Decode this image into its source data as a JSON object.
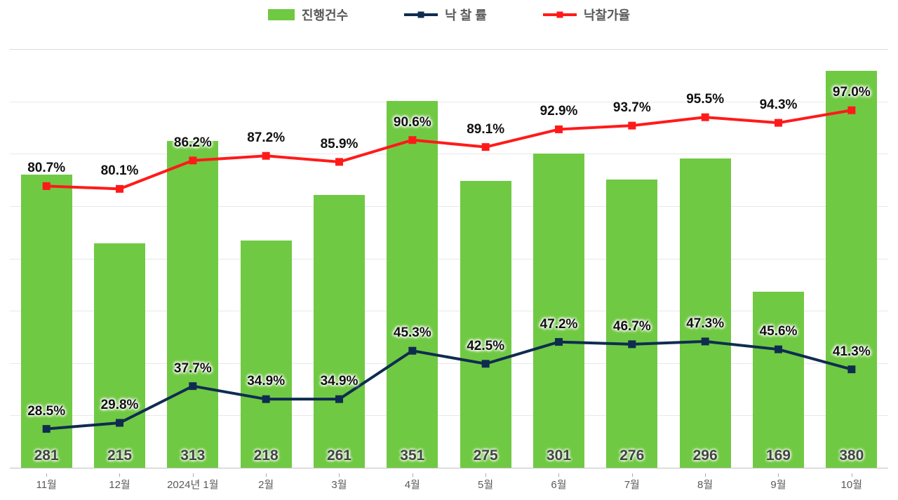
{
  "chart": {
    "type": "bar+line",
    "background_color": "#ffffff",
    "grid_color": "#e8e8e8",
    "axis_color": "#bfbfbf",
    "bar_color": "#70c943",
    "line1_color": "#0f2c50",
    "line2_color": "#ff1a1a",
    "bar_width_pct": 70,
    "bar_max_value": 400,
    "pct_axis_min": 20,
    "pct_axis_max": 110,
    "line_width": 4,
    "marker_size": 9,
    "grid_steps": 7,
    "label_fontsize": 15,
    "value_fontsize": 21,
    "pct_fontsize": 19,
    "legend_fontsize": 18,
    "legend": {
      "bar_label": "진행건수",
      "line1_label": "낙 찰 률",
      "line2_label": "낙찰가율"
    },
    "categories": [
      "11월",
      "12월",
      "2024년 1월",
      "2월",
      "3월",
      "4월",
      "5월",
      "6월",
      "7월",
      "8월",
      "9월",
      "10월"
    ],
    "bar_values": [
      281,
      215,
      313,
      218,
      261,
      351,
      275,
      301,
      276,
      296,
      169,
      380
    ],
    "line1_values": [
      28.5,
      29.8,
      37.7,
      34.9,
      34.9,
      45.3,
      42.5,
      47.2,
      46.7,
      47.3,
      45.6,
      41.3
    ],
    "line2_values": [
      80.7,
      80.1,
      86.2,
      87.2,
      85.9,
      90.6,
      89.1,
      92.9,
      93.7,
      95.5,
      94.3,
      97.0
    ]
  }
}
